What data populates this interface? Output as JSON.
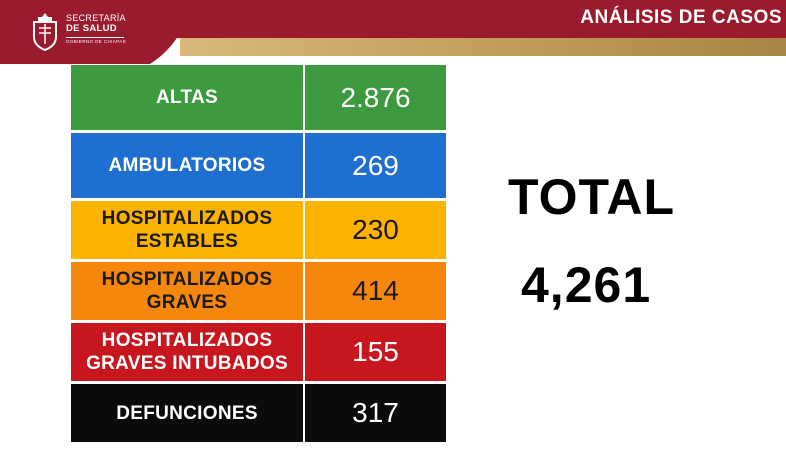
{
  "header": {
    "org_line1": "SECRETARÍA",
    "org_line2": "DE SALUD",
    "org_line3": "GOBIERNO DE CHIAPAS",
    "title": "ANÁLISIS DE CASOS",
    "colors": {
      "banner": "#9b1b2e",
      "stripe": "#c8a25e"
    }
  },
  "table": {
    "rows": [
      {
        "label": "ALTAS",
        "value": "2.876",
        "color": "#3d9a3f",
        "value_color": "#3d9a3f"
      },
      {
        "label": "AMBULATORIOS",
        "value": "269",
        "color": "#1f6fd1",
        "value_color": "#1f6fd1"
      },
      {
        "label": "HOSPITALIZADOS\nESTABLES",
        "value": "230",
        "color": "#fcb200",
        "value_color": "#fcb200"
      },
      {
        "label": "HOSPITALIZADOS\nGRAVES",
        "value": "414",
        "color": "#f5870c",
        "value_color": "#f5870c"
      },
      {
        "label": "HOSPITALIZADOS\nGRAVES INTUBADOS",
        "value": "155",
        "color": "#c8161e",
        "value_color": "#c8161e"
      },
      {
        "label": "DEFUNCIONES",
        "value": "317",
        "color": "#0b0b0b",
        "value_color": "#0b0b0b"
      }
    ]
  },
  "total": {
    "label": "TOTAL",
    "value": "4,261"
  }
}
